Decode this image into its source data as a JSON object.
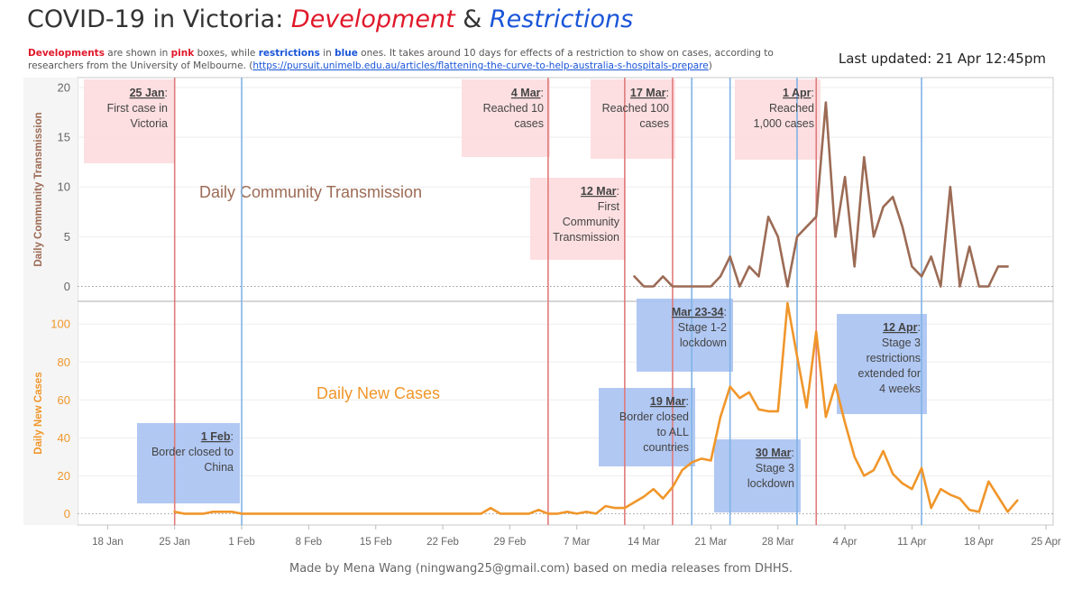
{
  "header": {
    "title_main": "COVID-19 in Victoria",
    "title_colon": ": ",
    "title_dev": "Development",
    "title_amp": " & ",
    "title_res": "Restrictions",
    "subtitle_dev_word": "Developments",
    "subtitle_p1": " are shown in ",
    "subtitle_pink_word": "pink",
    "subtitle_p2": " boxes, while ",
    "subtitle_blue_word": "restrictions",
    "subtitle_p3": " in ",
    "subtitle_blue_word2": "blue",
    "subtitle_p4": " ones. It takes around 10 days for effects of a restriction to show on cases, according to researchers from the University of Melbourne. (",
    "subtitle_link": "https://pursuit.unimelb.edu.au/articles/flattening-the-curve-to-help-australia-s-hospitals-prepare",
    "subtitle_p5": ")",
    "last_updated": "Last updated: 21 Apr 12:45pm"
  },
  "footer": "Made by Mena Wang (ningwang25@gmail.com) based on media releases from DHHS.",
  "chart_data": {
    "type": "line",
    "x_axis": {
      "tick_labels": [
        "18 Jan",
        "25 Jan",
        "1 Feb",
        "8 Feb",
        "15 Feb",
        "22 Feb",
        "29 Feb",
        "7 Mar",
        "14 Mar",
        "21 Mar",
        "28 Mar",
        "4 Apr",
        "11 Apr",
        "18 Apr",
        "25 Apr"
      ],
      "range": [
        "2020-01-15",
        "2020-04-25"
      ]
    },
    "panels": [
      {
        "id": "transmission",
        "ylabel": "Daily Community Transmission",
        "inner_label": "Daily Community Transmission",
        "color": "#9c6b55",
        "yticks": [
          0,
          5,
          10,
          15,
          20
        ],
        "ylim": [
          -1.5,
          21
        ],
        "start_date": "2020-03-13",
        "values": [
          1,
          0,
          0,
          1,
          0,
          0,
          0,
          0,
          0,
          1,
          3,
          0,
          2,
          1,
          7,
          5,
          0,
          5,
          6,
          7,
          18.5,
          5,
          11,
          2,
          13,
          5,
          8,
          9,
          6,
          2,
          1,
          3,
          0,
          10,
          0,
          4,
          0,
          0,
          2,
          2
        ]
      },
      {
        "id": "cases",
        "ylabel": "Daily New Cases",
        "inner_label": "Daily New Cases",
        "color": "#f0962a",
        "yticks": [
          0,
          20,
          40,
          60,
          80,
          100
        ],
        "ylim": [
          -6,
          112
        ],
        "start_date": "2020-01-25",
        "values": [
          1,
          0,
          0,
          0,
          1,
          1,
          1,
          0,
          0,
          0,
          0,
          0,
          0,
          0,
          0,
          0,
          0,
          0,
          0,
          0,
          0,
          0,
          0,
          0,
          0,
          0,
          0,
          0,
          0,
          0,
          0,
          0,
          0,
          3,
          0,
          0,
          0,
          0,
          2,
          0,
          0,
          1,
          0,
          1,
          0,
          4,
          3,
          3,
          6,
          9,
          13,
          8,
          14,
          23,
          27,
          29,
          28,
          51,
          67,
          61,
          64,
          55,
          54,
          54,
          111,
          83,
          56,
          96,
          51,
          68,
          48,
          30,
          20,
          23,
          33,
          21,
          16,
          13,
          24,
          3,
          13,
          10,
          8,
          2,
          1,
          17,
          9,
          1,
          7
        ]
      }
    ],
    "events": [
      {
        "type": "development",
        "date": "2020-01-25",
        "date_label": "25 Jan",
        "text": [
          "First case in",
          "Victoria"
        ]
      },
      {
        "type": "restriction",
        "date": "2020-02-01",
        "date_label": "1 Feb",
        "text": [
          "Border closed to",
          "China"
        ]
      },
      {
        "type": "development",
        "date": "2020-03-04",
        "date_label": "4 Mar",
        "text": [
          "Reached 10",
          "cases"
        ]
      },
      {
        "type": "development",
        "date": "2020-03-12",
        "date_label": "12 Mar",
        "text": [
          "First",
          "Community",
          "Transmission"
        ]
      },
      {
        "type": "development",
        "date": "2020-03-17",
        "date_label": "17 Mar",
        "text": [
          "Reached 100",
          "cases"
        ]
      },
      {
        "type": "restriction",
        "date": "2020-03-19",
        "date_label": "19 Mar",
        "text": [
          "Border closed",
          "to ALL",
          "countries"
        ]
      },
      {
        "type": "restriction",
        "date": "2020-03-23",
        "date_label": "Mar 23-34",
        "text": [
          "Stage 1-2",
          "lockdown"
        ]
      },
      {
        "type": "restriction",
        "date": "2020-03-30",
        "date_label": "30 Mar",
        "text": [
          "Stage 3",
          "lockdown"
        ]
      },
      {
        "type": "development",
        "date": "2020-04-01",
        "date_label": "1 Apr",
        "text": [
          "Reached",
          "1,000 cases"
        ]
      },
      {
        "type": "restriction",
        "date": "2020-04-12",
        "date_label": "12 Apr",
        "text": [
          "Stage 3",
          "restrictions",
          "extended for",
          "4 weeks"
        ]
      }
    ],
    "colors": {
      "development_line": "#e07b7b",
      "development_box": "#fdd9dc",
      "restriction_line": "#7fb3e6",
      "restriction_box": "#a9c2f2",
      "box_text": "#444444",
      "axis_text": "#666666",
      "grid": "#cfcfcf"
    }
  }
}
